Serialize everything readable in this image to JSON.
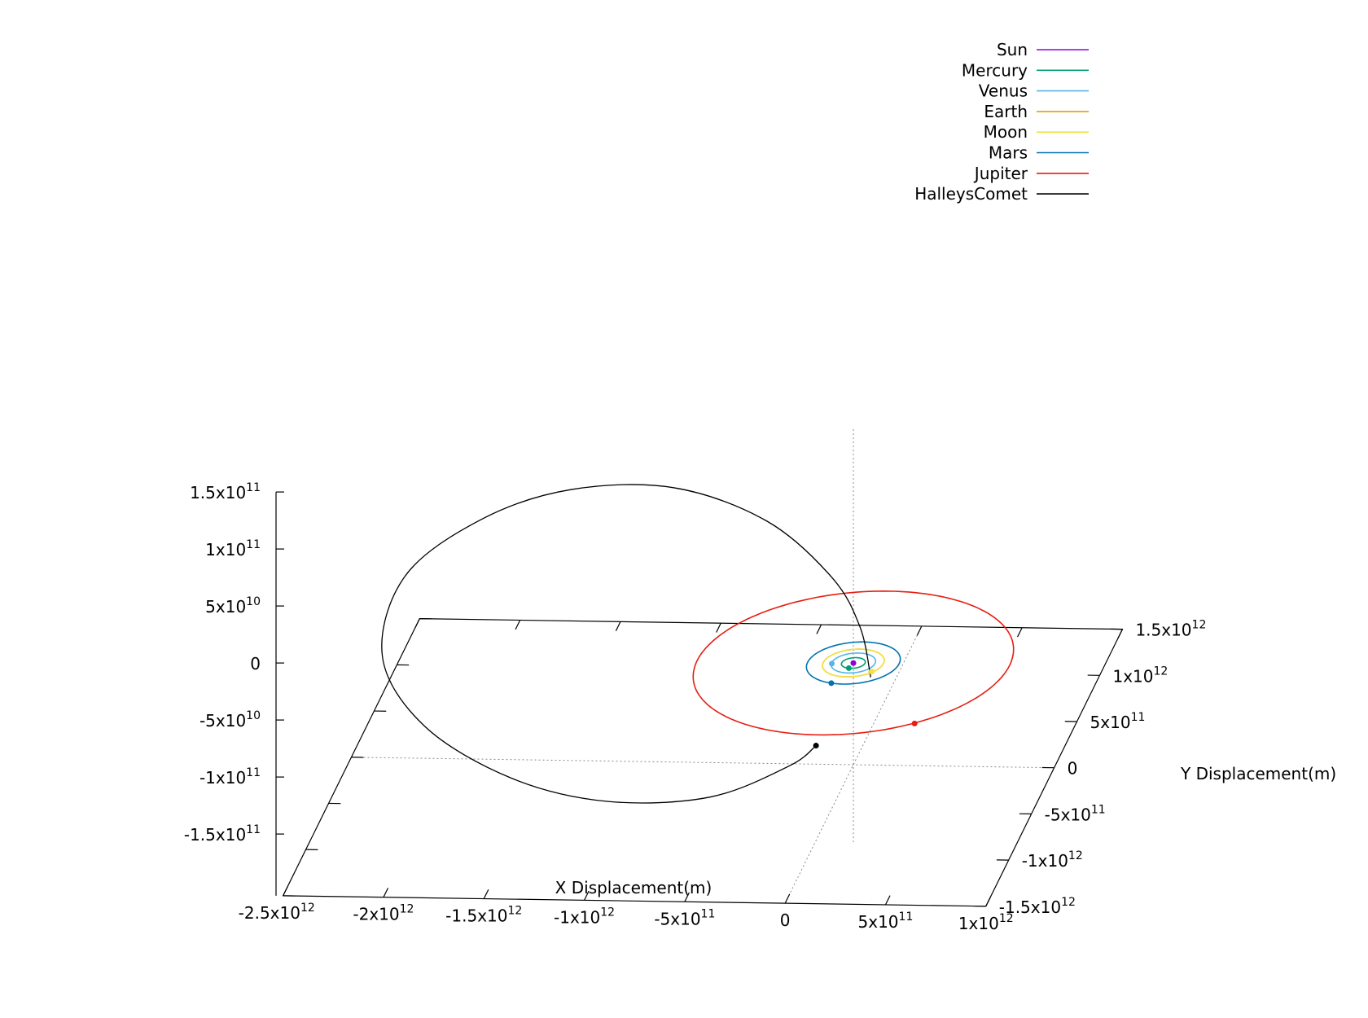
{
  "chart_data": {
    "type": "line",
    "projection": "3d",
    "title": "",
    "xlabel": "X Displacement(m)",
    "ylabel": "Y Displacement(m)",
    "zlabel": "",
    "xlim": [
      -2500000000000.0,
      1000000000000.0
    ],
    "ylim": [
      -1500000000000.0,
      1500000000000.0
    ],
    "zlim": [
      -150000000000.0,
      150000000000.0
    ],
    "x_ticks": [
      {
        "base": "-2.5x10",
        "exp": "12"
      },
      {
        "base": "-2x10",
        "exp": "12"
      },
      {
        "base": "-1.5x10",
        "exp": "12"
      },
      {
        "base": "-1x10",
        "exp": "12"
      },
      {
        "base": "-5x10",
        "exp": "11"
      },
      {
        "base": "0",
        "exp": ""
      },
      {
        "base": "5x10",
        "exp": "11"
      },
      {
        "base": "1x10",
        "exp": "12"
      }
    ],
    "y_ticks": [
      {
        "base": "1.5x10",
        "exp": "12"
      },
      {
        "base": "1x10",
        "exp": "12"
      },
      {
        "base": "5x10",
        "exp": "11"
      },
      {
        "base": "0",
        "exp": ""
      },
      {
        "base": "-5x10",
        "exp": "11"
      },
      {
        "base": "-1x10",
        "exp": "12"
      },
      {
        "base": "-1.5x10",
        "exp": "12"
      }
    ],
    "z_ticks": [
      {
        "base": "1.5x10",
        "exp": "11"
      },
      {
        "base": "1x10",
        "exp": "11"
      },
      {
        "base": "5x10",
        "exp": "10"
      },
      {
        "base": "0",
        "exp": ""
      },
      {
        "base": "-5x10",
        "exp": "10"
      },
      {
        "base": "-1x10",
        "exp": "11"
      },
      {
        "base": "-1.5x10",
        "exp": "11"
      }
    ],
    "legend_position": "top-right",
    "grid": "zero-axes dotted",
    "series": [
      {
        "name": "Sun",
        "color": "#9400d3",
        "orbit": {
          "a": 0,
          "b": 0,
          "cx": 0,
          "cy": 0
        },
        "position": [
          0,
          0,
          0
        ]
      },
      {
        "name": "Mercury",
        "color": "#009e73",
        "orbit": {
          "a": 58000000000.0,
          "b": 58000000000.0,
          "cx": 0,
          "cy": 0
        },
        "position": [
          -10000000000.0,
          -56000000000.0,
          0
        ]
      },
      {
        "name": "Venus",
        "color": "#56b4e9",
        "orbit": {
          "a": 108000000000.0,
          "b": 108000000000.0,
          "cx": 0,
          "cy": 0
        },
        "position": [
          -105000000000.0,
          -10000000000.0,
          0
        ]
      },
      {
        "name": "Earth",
        "color": "#e69f00",
        "orbit": {
          "a": 150000000000.0,
          "b": 150000000000.0,
          "cx": 0,
          "cy": 0
        },
        "position": [
          110000000000.0,
          -90000000000.0,
          0
        ]
      },
      {
        "name": "Moon",
        "color": "#f0e442",
        "orbit": {
          "a": 150000000000.0,
          "b": 150000000000.0,
          "cx": 0,
          "cy": 0
        },
        "position": [
          112000000000.0,
          -88000000000.0,
          0
        ]
      },
      {
        "name": "Mars",
        "color": "#0072b2",
        "orbit": {
          "a": 228000000000.0,
          "b": 228000000000.0,
          "cx": 0,
          "cy": 0
        },
        "position": [
          -60000000000.0,
          -220000000000.0,
          0
        ]
      },
      {
        "name": "Jupiter",
        "color": "#e51e10",
        "orbit": {
          "a": 778000000000.0,
          "b": 778000000000.0,
          "cx": 0,
          "cy": 0
        },
        "position": [
          450000000000.0,
          -640000000000.0,
          0
        ]
      },
      {
        "name": "HalleysComet",
        "color": "#000000",
        "path_x": [
          120000000000.0,
          0,
          -200000000000.0,
          -600000000000.0,
          -1100000000000.0,
          -1600000000000.0,
          -2000000000000.0,
          -2300000000000.0,
          -2300000000000.0,
          -2000000000000.0,
          -1500000000000.0,
          -1000000000000.0,
          -500000000000.0,
          -150000000000.0,
          -50000000000.0
        ],
        "path_y": [
          -150000000000.0,
          150000000000.0,
          420000000000.0,
          750000000000.0,
          900000000000.0,
          850000000000.0,
          650000000000.0,
          300000000000.0,
          -200000000000.0,
          -600000000000.0,
          -900000000000.0,
          -1000000000000.0,
          -950000000000.0,
          -750000000000.0,
          -600000000000.0
        ],
        "path_z": [
          0,
          19000000000.0,
          40000000000.0,
          62000000000.0,
          78000000000.0,
          79000000000.0,
          68000000000.0,
          46000000000.0,
          16000000000.0,
          -12000000000.0,
          -32000000000.0,
          -43000000000.0,
          -42000000000.0,
          -30000000000.0,
          -24000000000.0
        ],
        "position": [
          -50000000000.0,
          -600000000000.0,
          -24000000000.0
        ]
      }
    ]
  }
}
